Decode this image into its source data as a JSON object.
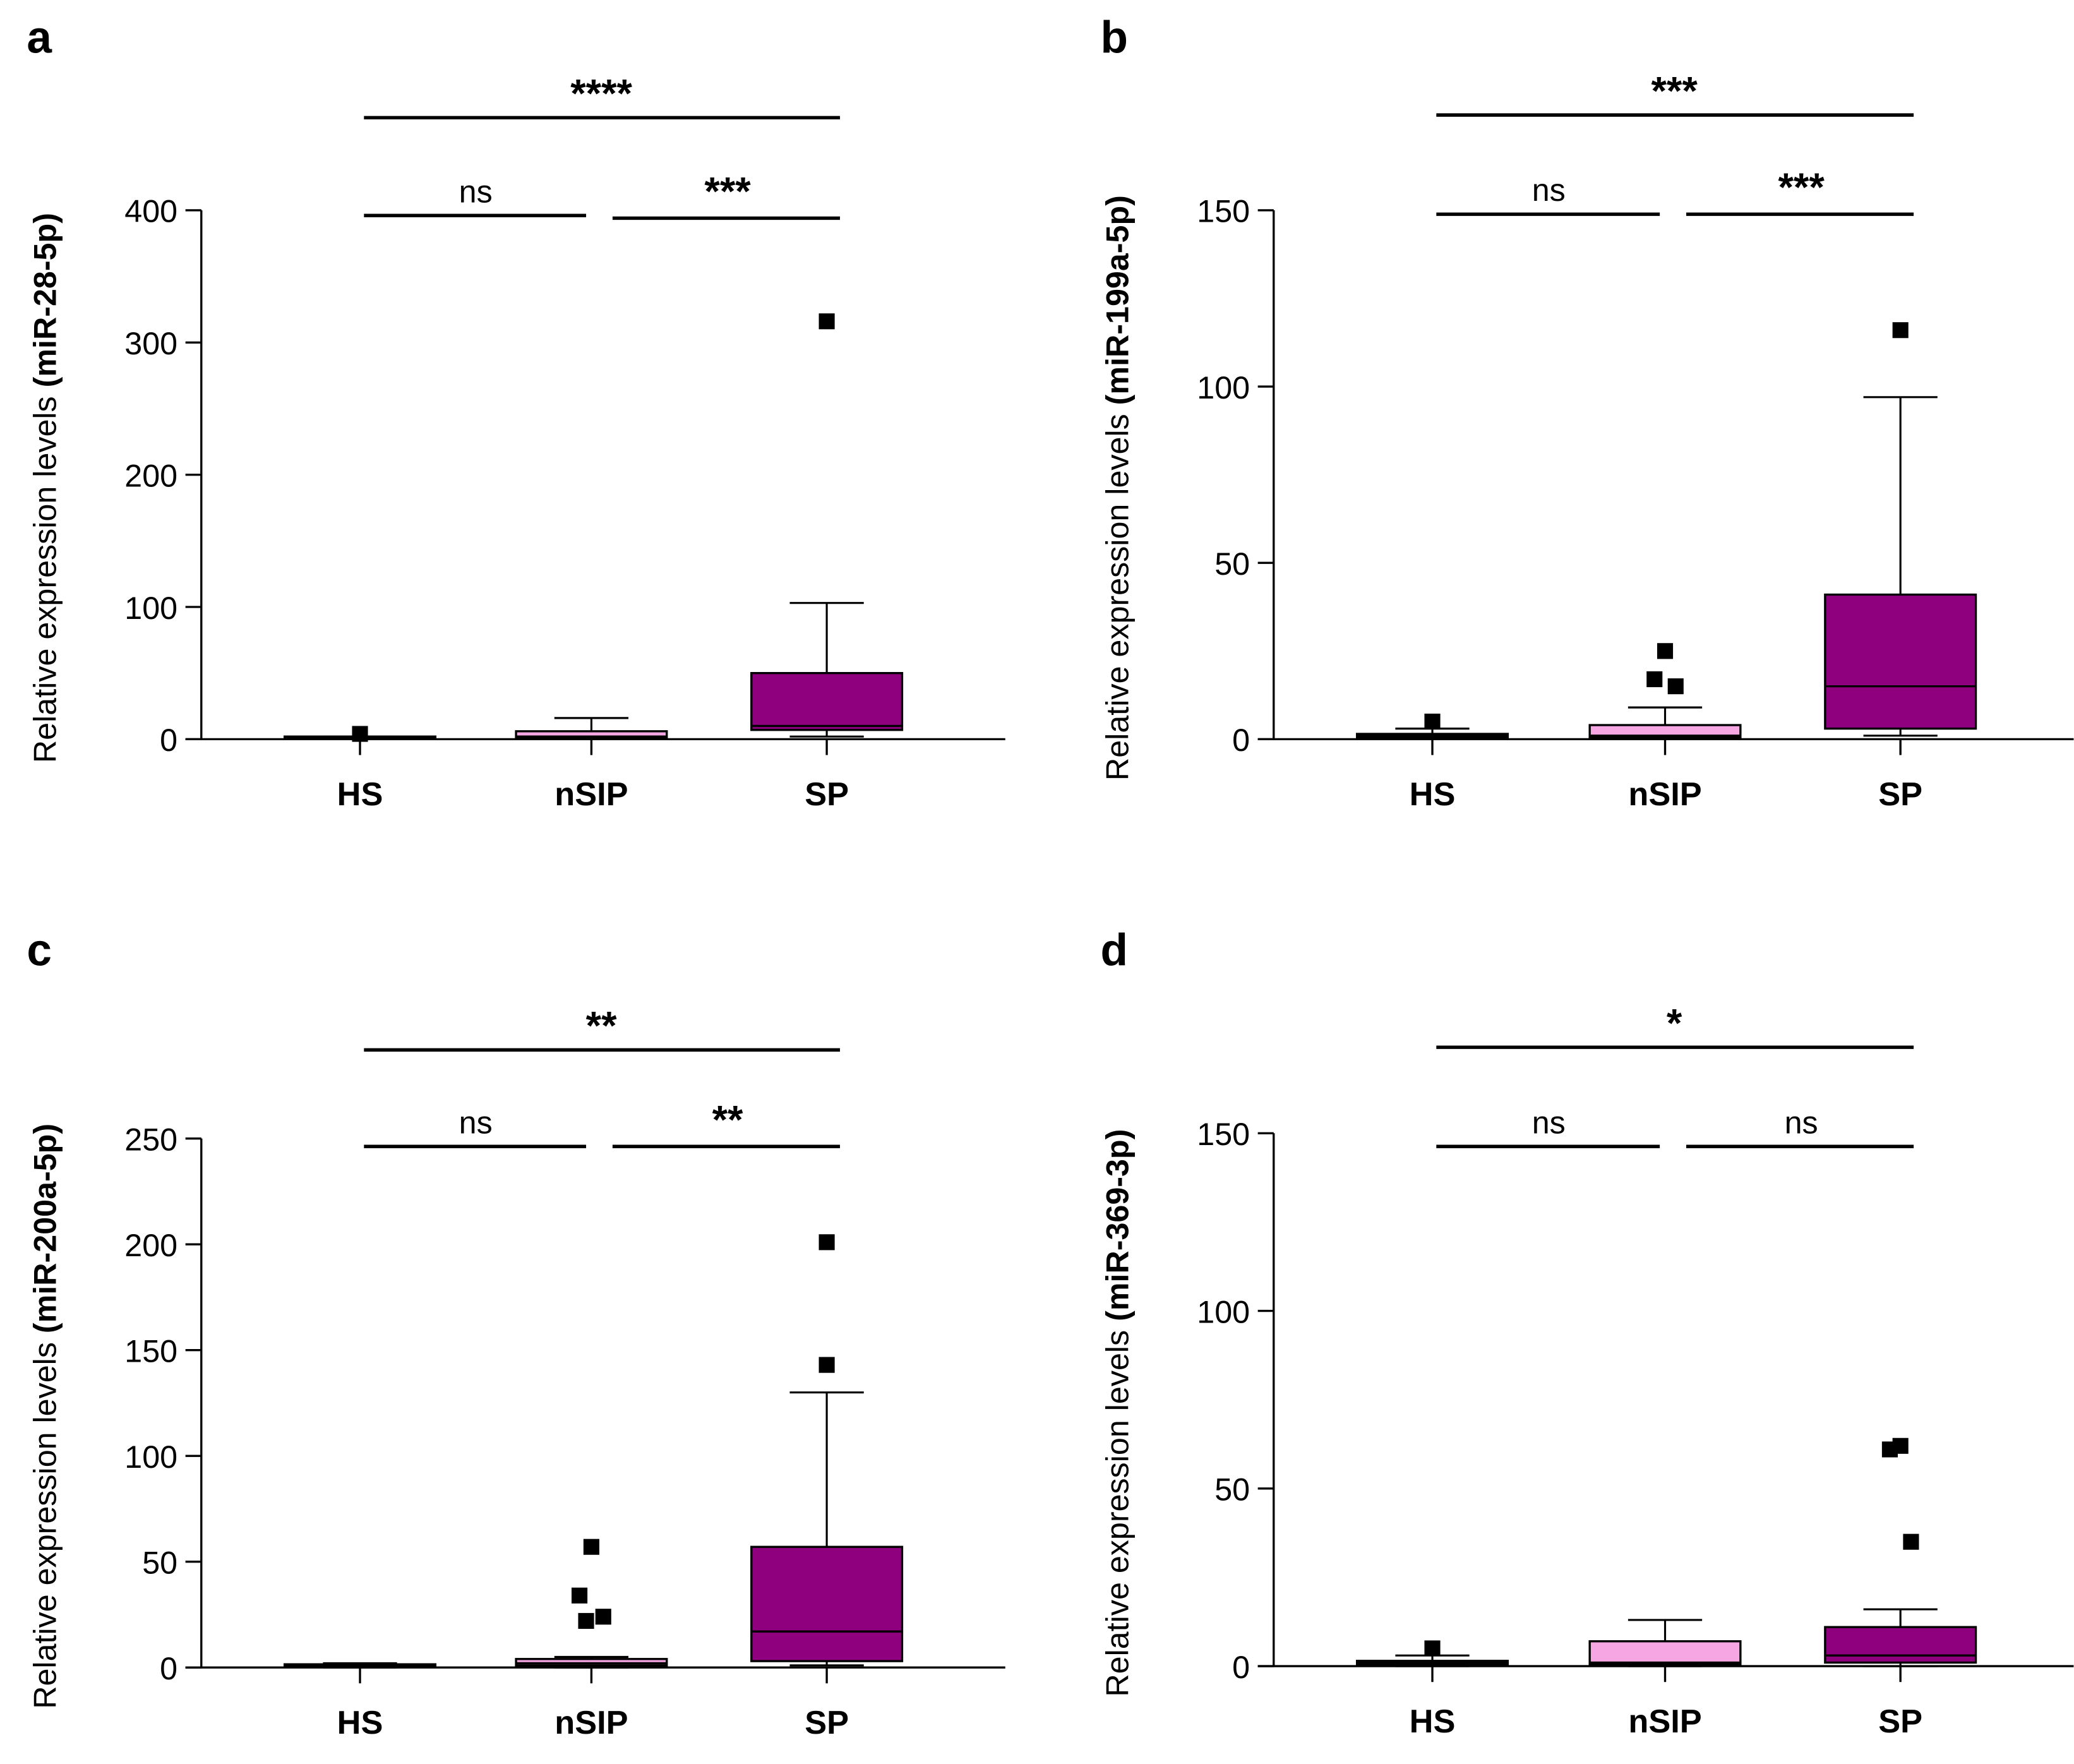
{
  "colors": {
    "HS": "#ffffff",
    "nSIP": "#f7a6e4",
    "SP": "#8e007e",
    "line": "#000000"
  },
  "chart_data": [
    {
      "type": "box",
      "panel": "a",
      "ylabel_prefix": "Relative expression levels ",
      "ylabel_target": "(miR-28-5p)",
      "ylim": [
        0,
        400
      ],
      "yticks": [
        0,
        100,
        200,
        300,
        400
      ],
      "categories": [
        "HS",
        "nSIP",
        "SP"
      ],
      "boxes": [
        {
          "name": "HS",
          "min": 0.5,
          "q1": 0.5,
          "median": 1,
          "q3": 2,
          "max": 2,
          "outliers": [
            4
          ]
        },
        {
          "name": "nSIP",
          "min": 0,
          "q1": 1,
          "median": 2,
          "q3": 6,
          "max": 16,
          "outliers": []
        },
        {
          "name": "SP",
          "min": 2,
          "q1": 7,
          "median": 10,
          "q3": 50,
          "max": 103,
          "outliers": [
            316
          ]
        }
      ],
      "significance": {
        "HS_vs_SP": "****",
        "HS_vs_nSIP": "ns",
        "nSIP_vs_SP": "***"
      }
    },
    {
      "type": "box",
      "panel": "b",
      "ylabel_prefix": "Relative expression levels ",
      "ylabel_target": "(miR-199a-5p)",
      "ylim": [
        0,
        150
      ],
      "yticks": [
        0,
        50,
        100,
        150
      ],
      "categories": [
        "HS",
        "nSIP",
        "SP"
      ],
      "boxes": [
        {
          "name": "HS",
          "min": 0,
          "q1": 0.5,
          "median": 1,
          "q3": 1.5,
          "max": 3,
          "outliers": [
            5
          ]
        },
        {
          "name": "nSIP",
          "min": 0,
          "q1": 0.5,
          "median": 1,
          "q3": 4,
          "max": 9,
          "outliers": [
            25,
            17,
            15
          ]
        },
        {
          "name": "SP",
          "min": 1,
          "q1": 3,
          "median": 15,
          "q3": 41,
          "max": 97,
          "outliers": [
            116
          ]
        }
      ],
      "significance": {
        "HS_vs_SP": "***",
        "HS_vs_nSIP": "ns",
        "nSIP_vs_SP": "***"
      }
    },
    {
      "type": "box",
      "panel": "c",
      "ylabel_prefix": "Relative expression levels ",
      "ylabel_target": "(miR-200a-5p)",
      "ylim": [
        0,
        250
      ],
      "yticks": [
        0,
        50,
        100,
        150,
        200,
        250
      ],
      "categories": [
        "HS",
        "nSIP",
        "SP"
      ],
      "boxes": [
        {
          "name": "HS",
          "min": 0,
          "q1": 0.5,
          "median": 1,
          "q3": 1.5,
          "max": 2,
          "outliers": []
        },
        {
          "name": "nSIP",
          "min": 0,
          "q1": 1,
          "median": 2,
          "q3": 4,
          "max": 5,
          "outliers": [
            57,
            34,
            24,
            22
          ]
        },
        {
          "name": "SP",
          "min": 1,
          "q1": 3,
          "median": 17,
          "q3": 57,
          "max": 130,
          "outliers": [
            201,
            143
          ]
        }
      ],
      "significance": {
        "HS_vs_SP": "**",
        "HS_vs_nSIP": "ns",
        "nSIP_vs_SP": "**"
      }
    },
    {
      "type": "box",
      "panel": "d",
      "ylabel_prefix": "Relative expression levels ",
      "ylabel_target": "(miR-369-3p)",
      "ylim": [
        0,
        150
      ],
      "yticks": [
        0,
        50,
        100,
        150
      ],
      "categories": [
        "HS",
        "nSIP",
        "SP"
      ],
      "boxes": [
        {
          "name": "HS",
          "min": 0,
          "q1": 0.5,
          "median": 1,
          "q3": 1.5,
          "max": 3,
          "outliers": [
            5
          ]
        },
        {
          "name": "nSIP",
          "min": 0,
          "q1": 0.5,
          "median": 1,
          "q3": 7,
          "max": 13,
          "outliers": []
        },
        {
          "name": "SP",
          "min": 0,
          "q1": 1,
          "median": 3,
          "q3": 11,
          "max": 16,
          "outliers": [
            62,
            61,
            35
          ]
        }
      ],
      "significance": {
        "HS_vs_SP": "*",
        "HS_vs_nSIP": "ns",
        "nSIP_vs_SP": "ns"
      }
    }
  ]
}
